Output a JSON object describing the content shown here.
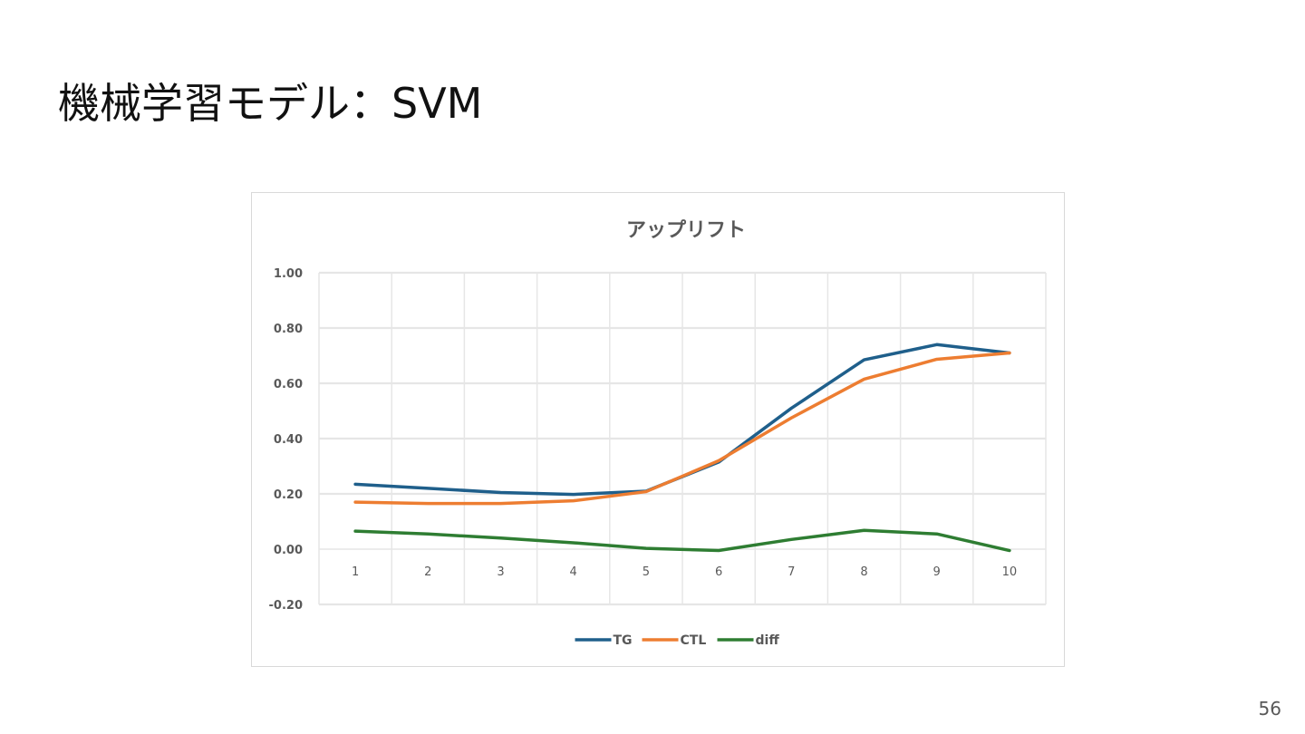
{
  "slide": {
    "title": "機械学習モデル：SVM",
    "page_number": "56"
  },
  "colors": {
    "TG": "#1f5f8b",
    "CTL": "#ed7d31",
    "diff": "#2e7d32",
    "grid": "#e6e6e6",
    "axis_text": "#595959"
  },
  "chart_data": {
    "type": "line",
    "title": "アップリフト",
    "xlabel": "",
    "ylabel": "",
    "categories": [
      "1",
      "2",
      "3",
      "4",
      "5",
      "6",
      "7",
      "8",
      "9",
      "10"
    ],
    "ylim": [
      -0.2,
      1.0
    ],
    "yticks": [
      "1.00",
      "0.80",
      "0.60",
      "0.40",
      "0.20",
      "0.00",
      "-0.20"
    ],
    "ytick_values": [
      1.0,
      0.8,
      0.6,
      0.4,
      0.2,
      0.0,
      -0.2
    ],
    "grid": true,
    "legend_position": "bottom",
    "series": [
      {
        "name": "TG",
        "values": [
          0.235,
          0.22,
          0.205,
          0.198,
          0.21,
          0.315,
          0.51,
          0.685,
          0.74,
          0.71
        ]
      },
      {
        "name": "CTL",
        "values": [
          0.17,
          0.165,
          0.165,
          0.175,
          0.208,
          0.32,
          0.475,
          0.615,
          0.687,
          0.71
        ]
      },
      {
        "name": "diff",
        "values": [
          0.065,
          0.055,
          0.04,
          0.023,
          0.003,
          -0.005,
          0.035,
          0.068,
          0.055,
          -0.005
        ]
      }
    ]
  }
}
